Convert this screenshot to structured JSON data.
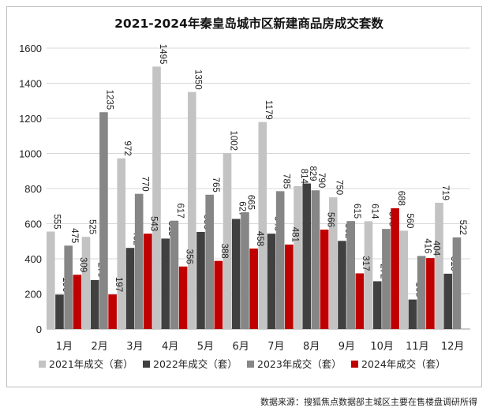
{
  "source_text": "数据来源：搜狐焦点数据部主城区主要在售楼盘调研所得",
  "chart_data": {
    "type": "bar",
    "title": "2021-2024年秦皇岛城市区新建商品房成交套数",
    "categories": [
      "1月",
      "2月",
      "3月",
      "4月",
      "5月",
      "6月",
      "7月",
      "8月",
      "9月",
      "10月",
      "11月",
      "12月"
    ],
    "series": [
      {
        "name": "2021年成交（套）",
        "color": "#c3c3c3",
        "values": [
          555,
          525,
          972,
          1495,
          1350,
          1002,
          1179,
          814,
          750,
          614,
          560,
          719
        ]
      },
      {
        "name": "2022年成交（套）",
        "color": "#404040",
        "values": [
          196,
          279,
          462,
          515,
          553,
          627,
          543,
          829,
          502,
          272,
          168,
          315
        ]
      },
      {
        "name": "2023年成交（套）",
        "color": "#868686",
        "values": [
          475,
          1235,
          770,
          617,
          765,
          665,
          785,
          790,
          615,
          570,
          416,
          522
        ]
      },
      {
        "name": "2024年成交（套）",
        "color": "#c00000",
        "values": [
          309,
          197,
          543,
          356,
          388,
          458,
          481,
          566,
          317,
          688,
          404,
          null
        ]
      }
    ],
    "ylim": [
      0,
      1600
    ],
    "yticks": [
      0,
      200,
      400,
      600,
      800,
      1000,
      1200,
      1400,
      1600
    ],
    "xlabel": "",
    "ylabel": "",
    "grid": true,
    "legend_position": "bottom"
  }
}
